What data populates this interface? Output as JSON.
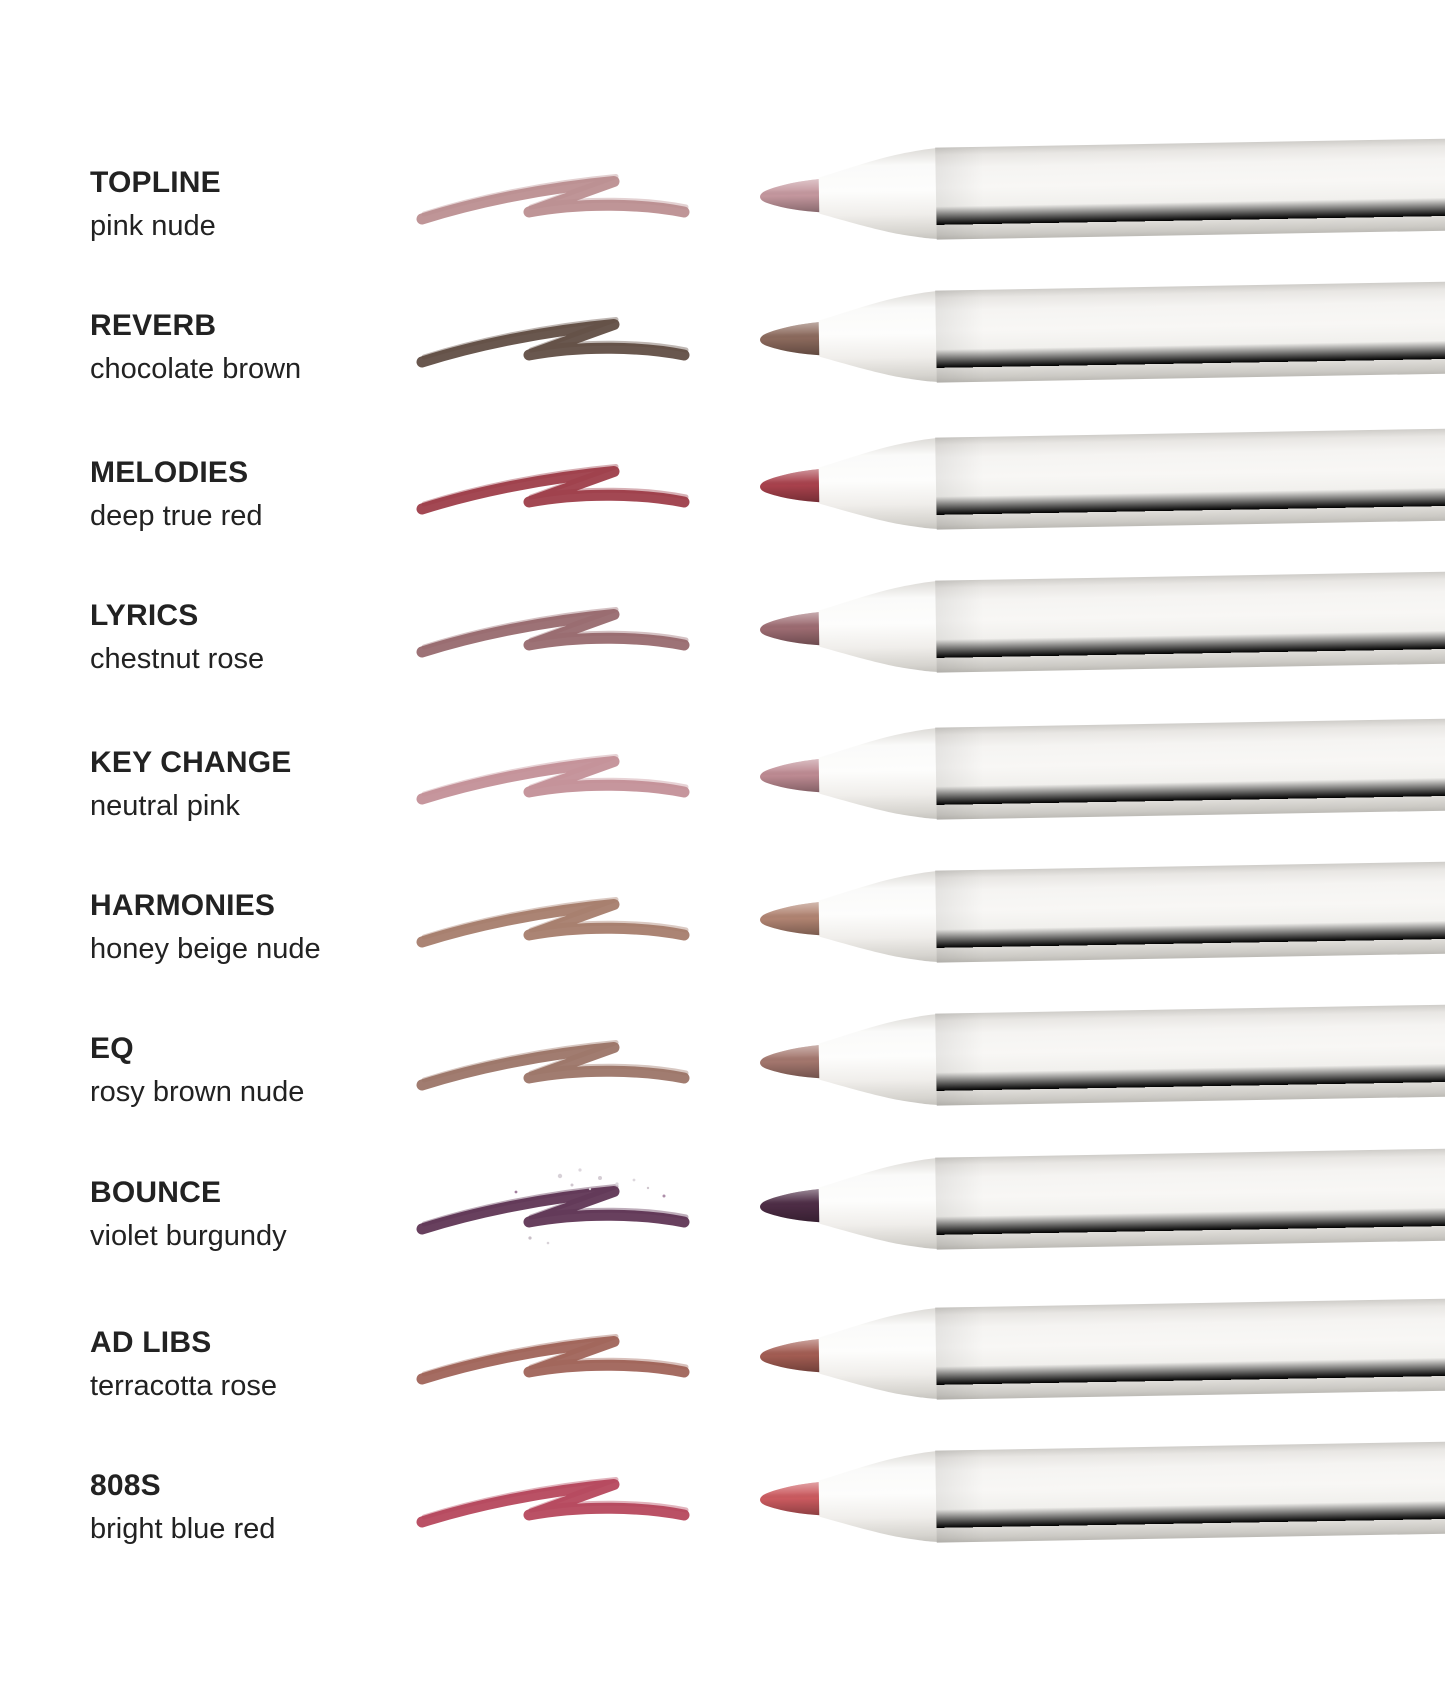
{
  "page": {
    "background": "#ffffff",
    "text_color": "#222222",
    "pencil_body_color": "#f3f2f0",
    "pencil_shadow_color": "#c6c4bf"
  },
  "products": [
    {
      "name": "TOPLINE",
      "shade": "pink nude",
      "swatch_color": "#ba8d8f",
      "tip_color": "#c4979e",
      "sparkles": false
    },
    {
      "name": "REVERB",
      "shade": "chocolate brown",
      "swatch_color": "#5e4a41",
      "tip_color": "#8b695c",
      "sparkles": false
    },
    {
      "name": "MELODIES",
      "shade": "deep true red",
      "swatch_color": "#9c3a46",
      "tip_color": "#a8414c",
      "sparkles": false
    },
    {
      "name": "LYRICS",
      "shade": "chestnut rose",
      "swatch_color": "#96676c",
      "tip_color": "#9c6b71",
      "sparkles": false
    },
    {
      "name": "KEY CHANGE",
      "shade": "neutral pink",
      "swatch_color": "#c28e96",
      "tip_color": "#bd8a92",
      "sparkles": false
    },
    {
      "name": "HARMONIES",
      "shade": "honey beige nude",
      "swatch_color": "#a57b69",
      "tip_color": "#b08371",
      "sparkles": false
    },
    {
      "name": "EQ",
      "shade": "rosy brown nude",
      "swatch_color": "#9a7265",
      "tip_color": "#a3766d",
      "sparkles": false
    },
    {
      "name": "BOUNCE",
      "shade": "violet burgundy",
      "swatch_color": "#5c3252",
      "tip_color": "#4d2c45",
      "sparkles": true
    },
    {
      "name": "AD LIBS",
      "shade": "terracotta rose",
      "swatch_color": "#9e6156",
      "tip_color": "#a25c52",
      "sparkles": false
    },
    {
      "name": "808S",
      "shade": "bright blue red",
      "swatch_color": "#b54459",
      "tip_color": "#cb5a5f",
      "sparkles": false
    }
  ]
}
